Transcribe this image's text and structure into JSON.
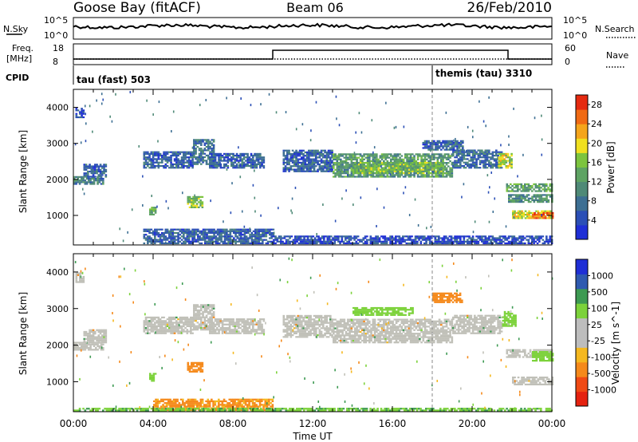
{
  "header": {
    "station": "Goose Bay (fitACF)",
    "beam": "Beam 06",
    "date": "26/Feb/2010"
  },
  "strip_panels": {
    "noise": {
      "left_label": "N.Sky",
      "left_ticks": [
        "10^5",
        "10^0"
      ],
      "right_label": "N.Search",
      "right_ticks": [
        "10^5",
        "10^0"
      ]
    },
    "freq": {
      "left_label_1": "Freq.",
      "left_label_2": "[MHz]",
      "left_ticks": [
        "18",
        "8"
      ],
      "right_label": "Nave",
      "right_ticks": [
        "60",
        "0"
      ]
    },
    "cpid": {
      "label": "CPID",
      "modes": [
        {
          "name": "tau (fast) 503",
          "start_hour": 0
        },
        {
          "name": "themis (tau) 3310",
          "start_hour": 18
        }
      ]
    }
  },
  "colors": {
    "power_scale": [
      "#1f2fd6",
      "#2b4fb6",
      "#3d6f93",
      "#4f8a77",
      "#5ea363",
      "#7cc43e",
      "#f0e020",
      "#f5a51c",
      "#f06a14",
      "#e52a10"
    ],
    "velocity_scale": [
      "#e52210",
      "#f04a14",
      "#f5891a",
      "#f5b81f",
      "#bdbdbd",
      "#bdbdbd",
      "#7cd23a",
      "#3d9a52",
      "#2f5ab0",
      "#1f2fd6"
    ],
    "ground_scatter": "#c0c0b8"
  },
  "chart_data": [
    {
      "type": "heatmap",
      "title": "Power",
      "ylabel": "Slant Range [km]",
      "xlabel": "",
      "xlim_hours": [
        0,
        24
      ],
      "ylim_km": [
        180,
        4500
      ],
      "y_ticks": [
        1000,
        2000,
        3000,
        4000
      ],
      "colorbar": {
        "label": "Power [dB]",
        "ticks": [
          "4",
          "8",
          "12",
          "16",
          "20",
          "24",
          "28"
        ],
        "range": [
          0,
          30
        ]
      },
      "regions": [
        {
          "t0": 0.0,
          "t1": 1.5,
          "r0": 1850,
          "r1": 2050,
          "level": 9
        },
        {
          "t0": 0.1,
          "t1": 0.5,
          "r0": 3700,
          "r1": 3950,
          "level": 5
        },
        {
          "t0": 0.5,
          "t1": 1.6,
          "r0": 2050,
          "r1": 2400,
          "level": 6
        },
        {
          "t0": 3.5,
          "t1": 6.0,
          "r0": 2300,
          "r1": 2750,
          "level": 6
        },
        {
          "t0": 6.0,
          "t1": 7.0,
          "r0": 2400,
          "r1": 3100,
          "level": 8
        },
        {
          "t0": 6.8,
          "t1": 9.5,
          "r0": 2300,
          "r1": 2700,
          "level": 6
        },
        {
          "t0": 3.8,
          "t1": 4.1,
          "r0": 1000,
          "r1": 1200,
          "level": 14
        },
        {
          "t0": 5.7,
          "t1": 6.5,
          "r0": 1200,
          "r1": 1500,
          "level": 16
        },
        {
          "t0": 10.5,
          "t1": 13.0,
          "r0": 2200,
          "r1": 2800,
          "level": 6
        },
        {
          "t0": 13.0,
          "t1": 19.0,
          "r0": 2050,
          "r1": 2700,
          "level": 12
        },
        {
          "t0": 14.0,
          "t1": 18.5,
          "r0": 2150,
          "r1": 2450,
          "level": 15
        },
        {
          "t0": 19.0,
          "t1": 21.5,
          "r0": 2300,
          "r1": 2800,
          "level": 7
        },
        {
          "t0": 17.5,
          "t1": 19.5,
          "r0": 2800,
          "r1": 3050,
          "level": 6
        },
        {
          "t0": 21.3,
          "t1": 22.0,
          "r0": 2300,
          "r1": 2700,
          "level": 18
        },
        {
          "t0": 21.7,
          "t1": 24.0,
          "r0": 1650,
          "r1": 1850,
          "level": 13
        },
        {
          "t0": 21.8,
          "t1": 24.0,
          "r0": 1350,
          "r1": 1550,
          "level": 11
        },
        {
          "t0": 22.0,
          "t1": 24.0,
          "r0": 900,
          "r1": 1100,
          "level": 19
        },
        {
          "t0": 23.0,
          "t1": 24.0,
          "r0": 900,
          "r1": 1050,
          "level": 26
        },
        {
          "t0": 3.5,
          "t1": 10.0,
          "r0": 200,
          "r1": 600,
          "level": 6
        },
        {
          "t0": 10.0,
          "t1": 24.0,
          "r0": 200,
          "r1": 400,
          "level": 4
        }
      ]
    },
    {
      "type": "heatmap",
      "title": "Velocity",
      "ylabel": "Slant Range [km]",
      "xlabel": "Time UT",
      "x_ticks": [
        "00:00",
        "04:00",
        "08:00",
        "12:00",
        "16:00",
        "20:00",
        "00:00"
      ],
      "xlim_hours": [
        0,
        24
      ],
      "ylim_km": [
        180,
        4500
      ],
      "y_ticks": [
        1000,
        2000,
        3000,
        4000
      ],
      "colorbar": {
        "label": "Velocity [m s^-1]",
        "ticks": [
          "-1000",
          "-500",
          "-100",
          "-25",
          "25",
          "100",
          "500",
          "1000"
        ]
      },
      "regions": [
        {
          "t0": 0.0,
          "t1": 1.5,
          "r0": 1850,
          "r1": 2050,
          "vel": 0
        },
        {
          "t0": 0.1,
          "t1": 0.5,
          "r0": 3700,
          "r1": 3950,
          "vel": 0
        },
        {
          "t0": 0.5,
          "t1": 1.6,
          "r0": 2050,
          "r1": 2400,
          "vel": 0
        },
        {
          "t0": 3.5,
          "t1": 6.0,
          "r0": 2300,
          "r1": 2750,
          "vel": 0
        },
        {
          "t0": 6.0,
          "t1": 7.0,
          "r0": 2400,
          "r1": 3100,
          "vel": 0
        },
        {
          "t0": 6.8,
          "t1": 9.5,
          "r0": 2300,
          "r1": 2700,
          "vel": 0
        },
        {
          "t0": 3.8,
          "t1": 4.1,
          "r0": 1000,
          "r1": 1200,
          "vel": 60
        },
        {
          "t0": 5.7,
          "t1": 6.5,
          "r0": 1250,
          "r1": 1500,
          "vel": -300
        },
        {
          "t0": 10.5,
          "t1": 13.0,
          "r0": 2200,
          "r1": 2800,
          "vel": 0
        },
        {
          "t0": 13.0,
          "t1": 19.0,
          "r0": 2050,
          "r1": 2700,
          "vel": 0
        },
        {
          "t0": 14.0,
          "t1": 17.0,
          "r0": 2800,
          "r1": 3000,
          "vel": 60
        },
        {
          "t0": 19.0,
          "t1": 21.5,
          "r0": 2300,
          "r1": 2800,
          "vel": 0
        },
        {
          "t0": 18.0,
          "t1": 19.5,
          "r0": 3150,
          "r1": 3400,
          "vel": -200
        },
        {
          "t0": 21.5,
          "t1": 22.2,
          "r0": 2500,
          "r1": 2900,
          "vel": 60
        },
        {
          "t0": 21.7,
          "t1": 24.0,
          "r0": 1650,
          "r1": 1850,
          "vel": 0
        },
        {
          "t0": 23.0,
          "t1": 24.0,
          "r0": 1550,
          "r1": 1800,
          "vel": 60
        },
        {
          "t0": 22.0,
          "t1": 24.0,
          "r0": 900,
          "r1": 1100,
          "vel": 0
        },
        {
          "t0": 4.0,
          "t1": 10.0,
          "r0": 200,
          "r1": 500,
          "vel": -150
        },
        {
          "t0": 0.0,
          "t1": 24.0,
          "r0": 190,
          "r1": 260,
          "vel": 80
        }
      ]
    }
  ]
}
